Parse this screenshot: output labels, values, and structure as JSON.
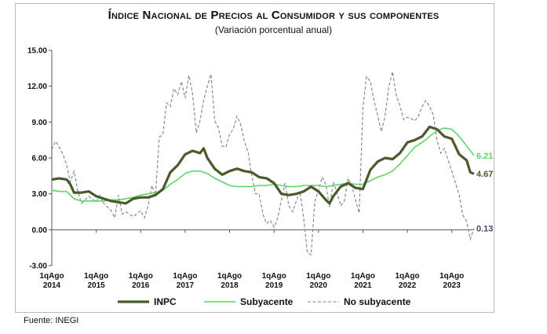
{
  "header": {
    "title": "Índice Nacional de Precios al Consumidor y sus componentes",
    "subtitle": "(Variación porcentual anual)"
  },
  "footer": {
    "source": "Fuente: INEGI"
  },
  "colors": {
    "inpc": "#4b5a2a",
    "subyacente": "#5fd46a",
    "no_subyacente": "#7a7f9a",
    "axis": "#555555"
  },
  "chart_data": {
    "type": "line",
    "title": "Índice Nacional de Precios al Consumidor y sus componentes",
    "subtitle": "(Variación porcentual anual)",
    "xlabel": "",
    "ylabel": "",
    "ylim": [
      -3,
      15
    ],
    "yticks": [
      "15.00",
      "12.00",
      "9.00",
      "6.00",
      "3.00",
      "0.00",
      "-3.00"
    ],
    "ytick_values": [
      15,
      12,
      9,
      6,
      3,
      0,
      -3
    ],
    "x_start": "2014-08",
    "x_end": "2023-08",
    "xticks": [
      {
        "line1": "1qAgo",
        "line2": "2014",
        "month_index": 0
      },
      {
        "line1": "1qAgo",
        "line2": "2015",
        "month_index": 12
      },
      {
        "line1": "1qAgo",
        "line2": "2016",
        "month_index": 24
      },
      {
        "line1": "1qAgo",
        "line2": "2017",
        "month_index": 36
      },
      {
        "line1": "1qAgo",
        "line2": "2018",
        "month_index": 48
      },
      {
        "line1": "1qAgo",
        "line2": "2019",
        "month_index": 60
      },
      {
        "line1": "1qAgo",
        "line2": "2020",
        "month_index": 72
      },
      {
        "line1": "1qAgo",
        "line2": "2021",
        "month_index": 84
      },
      {
        "line1": "1qAgo",
        "line2": "2022",
        "month_index": 96
      },
      {
        "line1": "1qAgo",
        "line2": "2023",
        "month_index": 108
      }
    ],
    "legend": [
      "INPC",
      "Subyacente",
      "No subyacente"
    ],
    "end_labels": [
      "6.21",
      "4.67",
      "0.13"
    ],
    "series": [
      {
        "name": "INPC",
        "style": "thick",
        "points": [
          [
            0,
            4.2
          ],
          [
            2,
            4.3
          ],
          [
            4,
            4.2
          ],
          [
            5,
            3.8
          ],
          [
            6,
            3.1
          ],
          [
            8,
            3.1
          ],
          [
            10,
            3.2
          ],
          [
            12,
            2.8
          ],
          [
            14,
            2.6
          ],
          [
            16,
            2.4
          ],
          [
            18,
            2.3
          ],
          [
            20,
            2.2
          ],
          [
            22,
            2.6
          ],
          [
            24,
            2.7
          ],
          [
            26,
            2.7
          ],
          [
            28,
            2.9
          ],
          [
            30,
            3.4
          ],
          [
            32,
            4.8
          ],
          [
            34,
            5.4
          ],
          [
            36,
            6.3
          ],
          [
            38,
            6.6
          ],
          [
            40,
            6.4
          ],
          [
            41,
            6.8
          ],
          [
            42,
            6.0
          ],
          [
            44,
            5.1
          ],
          [
            46,
            4.6
          ],
          [
            48,
            4.9
          ],
          [
            50,
            5.1
          ],
          [
            52,
            4.9
          ],
          [
            54,
            4.8
          ],
          [
            56,
            4.4
          ],
          [
            58,
            4.3
          ],
          [
            60,
            3.9
          ],
          [
            62,
            3.0
          ],
          [
            64,
            2.9
          ],
          [
            66,
            3.0
          ],
          [
            68,
            3.2
          ],
          [
            70,
            3.6
          ],
          [
            72,
            3.2
          ],
          [
            74,
            2.5
          ],
          [
            75,
            2.2
          ],
          [
            76,
            2.8
          ],
          [
            78,
            3.6
          ],
          [
            80,
            3.9
          ],
          [
            82,
            3.5
          ],
          [
            84,
            3.4
          ],
          [
            86,
            5.0
          ],
          [
            88,
            5.7
          ],
          [
            90,
            6.0
          ],
          [
            92,
            5.9
          ],
          [
            94,
            6.4
          ],
          [
            96,
            7.3
          ],
          [
            98,
            7.5
          ],
          [
            100,
            7.8
          ],
          [
            102,
            8.6
          ],
          [
            104,
            8.4
          ],
          [
            106,
            7.8
          ],
          [
            108,
            7.6
          ],
          [
            110,
            6.3
          ],
          [
            112,
            5.8
          ],
          [
            113,
            4.8
          ],
          [
            114,
            4.67
          ]
        ]
      },
      {
        "name": "Subyacente",
        "style": "solid",
        "points": [
          [
            0,
            3.3
          ],
          [
            2,
            3.2
          ],
          [
            4,
            3.2
          ],
          [
            6,
            2.6
          ],
          [
            8,
            2.4
          ],
          [
            10,
            2.4
          ],
          [
            12,
            2.4
          ],
          [
            14,
            2.4
          ],
          [
            16,
            2.5
          ],
          [
            18,
            2.5
          ],
          [
            20,
            2.6
          ],
          [
            22,
            2.7
          ],
          [
            24,
            2.9
          ],
          [
            26,
            3.0
          ],
          [
            28,
            3.1
          ],
          [
            30,
            3.3
          ],
          [
            32,
            3.8
          ],
          [
            34,
            4.2
          ],
          [
            36,
            4.7
          ],
          [
            38,
            4.9
          ],
          [
            40,
            4.9
          ],
          [
            42,
            4.7
          ],
          [
            44,
            4.3
          ],
          [
            46,
            4.0
          ],
          [
            48,
            3.7
          ],
          [
            50,
            3.6
          ],
          [
            52,
            3.6
          ],
          [
            54,
            3.6
          ],
          [
            56,
            3.7
          ],
          [
            58,
            3.7
          ],
          [
            60,
            3.8
          ],
          [
            62,
            3.7
          ],
          [
            64,
            3.6
          ],
          [
            66,
            3.6
          ],
          [
            68,
            3.7
          ],
          [
            70,
            3.7
          ],
          [
            72,
            3.7
          ],
          [
            74,
            3.6
          ],
          [
            76,
            3.7
          ],
          [
            78,
            3.8
          ],
          [
            80,
            3.9
          ],
          [
            82,
            3.8
          ],
          [
            84,
            3.8
          ],
          [
            86,
            4.1
          ],
          [
            88,
            4.4
          ],
          [
            90,
            4.6
          ],
          [
            92,
            4.9
          ],
          [
            94,
            5.5
          ],
          [
            96,
            6.2
          ],
          [
            98,
            6.9
          ],
          [
            100,
            7.3
          ],
          [
            102,
            7.8
          ],
          [
            104,
            8.3
          ],
          [
            106,
            8.5
          ],
          [
            108,
            8.4
          ],
          [
            110,
            7.8
          ],
          [
            112,
            7.0
          ],
          [
            114,
            6.21
          ]
        ]
      },
      {
        "name": "No subyacente",
        "style": "dashed",
        "points": [
          [
            0,
            6.7
          ],
          [
            1,
            7.4
          ],
          [
            2,
            6.9
          ],
          [
            3,
            6.3
          ],
          [
            4,
            5.4
          ],
          [
            5,
            4.0
          ],
          [
            6,
            4.9
          ],
          [
            7,
            3.3
          ],
          [
            8,
            2.2
          ],
          [
            10,
            2.8
          ],
          [
            12,
            2.3
          ],
          [
            13,
            2.9
          ],
          [
            14,
            2.2
          ],
          [
            16,
            1.6
          ],
          [
            17,
            1.0
          ],
          [
            18,
            2.9
          ],
          [
            19,
            1.3
          ],
          [
            20,
            1.5
          ],
          [
            22,
            1.1
          ],
          [
            24,
            1.6
          ],
          [
            25,
            1.0
          ],
          [
            26,
            2.0
          ],
          [
            27,
            3.7
          ],
          [
            28,
            2.9
          ],
          [
            29,
            7.7
          ],
          [
            30,
            8.0
          ],
          [
            31,
            10.6
          ],
          [
            32,
            10.3
          ],
          [
            33,
            11.8
          ],
          [
            34,
            11.3
          ],
          [
            35,
            12.4
          ],
          [
            36,
            11.0
          ],
          [
            37,
            12.9
          ],
          [
            38,
            11.4
          ],
          [
            39,
            8.1
          ],
          [
            40,
            9.1
          ],
          [
            41,
            10.8
          ],
          [
            42,
            12.0
          ],
          [
            43,
            13.0
          ],
          [
            44,
            9.1
          ],
          [
            45,
            8.5
          ],
          [
            46,
            7.0
          ],
          [
            47,
            6.9
          ],
          [
            48,
            8.0
          ],
          [
            49,
            8.4
          ],
          [
            50,
            9.5
          ],
          [
            51,
            8.8
          ],
          [
            52,
            7.4
          ],
          [
            53,
            6.5
          ],
          [
            54,
            4.5
          ],
          [
            55,
            3.0
          ],
          [
            56,
            3.0
          ],
          [
            57,
            1.3
          ],
          [
            58,
            0.5
          ],
          [
            59,
            0.8
          ],
          [
            60,
            0.2
          ],
          [
            61,
            1.0
          ],
          [
            62,
            2.5
          ],
          [
            63,
            3.9
          ],
          [
            64,
            2.0
          ],
          [
            65,
            1.5
          ],
          [
            66,
            2.4
          ],
          [
            67,
            3.2
          ],
          [
            68,
            1.0
          ],
          [
            69,
            -1.9
          ],
          [
            70,
            -2.1
          ],
          [
            71,
            2.4
          ],
          [
            72,
            3.3
          ],
          [
            73,
            4.4
          ],
          [
            74,
            3.8
          ],
          [
            75,
            1.9
          ],
          [
            76,
            4.0
          ],
          [
            77,
            3.1
          ],
          [
            78,
            2.0
          ],
          [
            79,
            2.4
          ],
          [
            80,
            4.3
          ],
          [
            81,
            3.7
          ],
          [
            82,
            2.5
          ],
          [
            83,
            1.4
          ],
          [
            84,
            10.2
          ],
          [
            85,
            12.8
          ],
          [
            86,
            12.4
          ],
          [
            87,
            10.8
          ],
          [
            88,
            9.5
          ],
          [
            89,
            8.2
          ],
          [
            90,
            9.5
          ],
          [
            91,
            12.0
          ],
          [
            92,
            13.2
          ],
          [
            93,
            11.2
          ],
          [
            94,
            10.4
          ],
          [
            95,
            9.2
          ],
          [
            96,
            9.4
          ],
          [
            97,
            9.3
          ],
          [
            98,
            9.1
          ],
          [
            99,
            9.5
          ],
          [
            100,
            10.3
          ],
          [
            101,
            10.8
          ],
          [
            102,
            10.3
          ],
          [
            103,
            9.6
          ],
          [
            104,
            7.5
          ],
          [
            105,
            6.4
          ],
          [
            106,
            6.8
          ],
          [
            107,
            5.8
          ],
          [
            108,
            4.9
          ],
          [
            109,
            3.9
          ],
          [
            110,
            2.9
          ],
          [
            111,
            1.2
          ],
          [
            112,
            0.7
          ],
          [
            113,
            -0.8
          ],
          [
            114,
            0.13
          ]
        ]
      }
    ]
  }
}
